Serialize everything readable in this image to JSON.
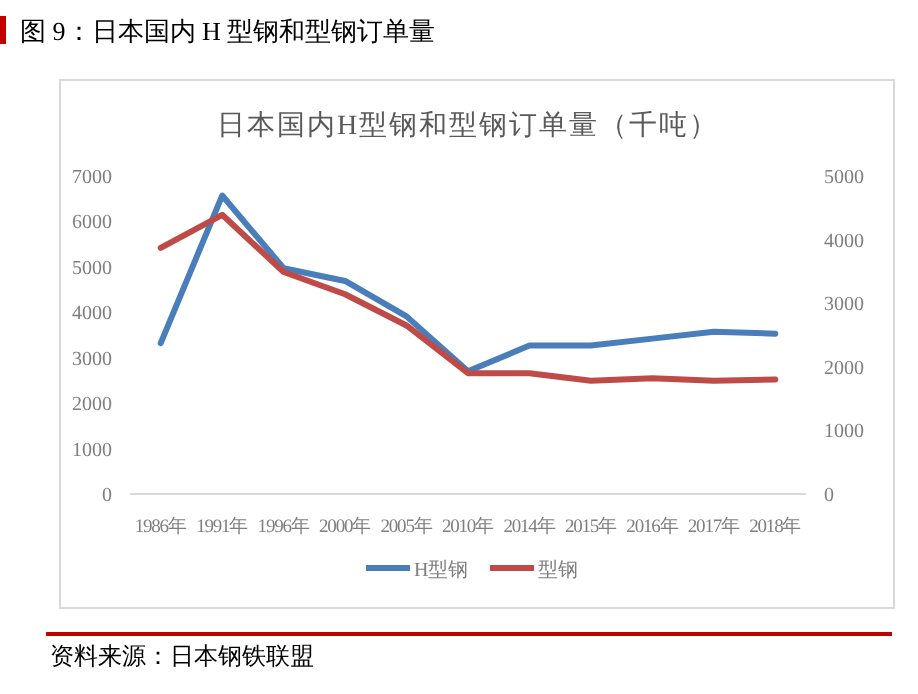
{
  "chart_data": {
    "type": "line",
    "title": "日本国内H型钢和型钢订单量（千吨）",
    "annotations": [
      "图 9：日本国内 H 型钢和型钢订单量",
      "资料来源：日本钢铁联盟"
    ],
    "categories": [
      "1986年",
      "1991年",
      "1996年",
      "2000年",
      "2005年",
      "2010年",
      "2014年",
      "2015年",
      "2016年",
      "2017年",
      "2018年"
    ],
    "series": [
      {
        "name": "H型钢",
        "color": "#4a7ebb",
        "values": [
          3320,
          6570,
          4970,
          4690,
          3910,
          2700,
          3270,
          3270,
          3420,
          3570,
          3530
        ]
      },
      {
        "name": "型钢",
        "color": "#be4b48",
        "axis": "y2",
        "values": [
          3870,
          4390,
          3490,
          3140,
          2650,
          1900,
          1900,
          1780,
          1820,
          1780,
          1800
        ]
      }
    ],
    "ylim": [
      0,
      7000
    ],
    "yticks": [
      0,
      1000,
      2000,
      3000,
      4000,
      5000,
      6000,
      7000
    ],
    "y2lim": [
      0,
      5000
    ],
    "y2ticks": [
      0,
      1000,
      2000,
      3000,
      4000,
      5000
    ],
    "grid": false,
    "legend": "bottom",
    "marker": "none",
    "line_style": "solid"
  }
}
